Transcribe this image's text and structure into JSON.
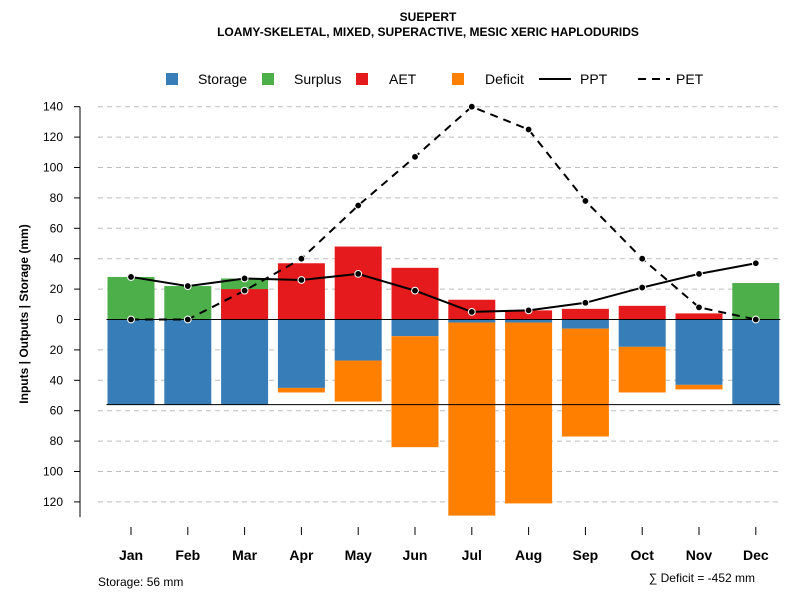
{
  "chart_data": {
    "type": "bar",
    "title": "SUEPERT",
    "subtitle": "LOAMY-SKELETAL, MIXED, SUPERACTIVE, MESIC XERIC HAPLODURIDS",
    "ylabel": "Inputs | Outputs | Storage    (mm)",
    "y_axis_upper": {
      "range": [
        0,
        140
      ],
      "ticks": [
        0,
        20,
        40,
        60,
        80,
        100,
        120,
        140
      ]
    },
    "y_axis_lower": {
      "range": [
        0,
        130
      ],
      "ticks": [
        20,
        40,
        60,
        80,
        100,
        120
      ],
      "direction": "downward"
    },
    "grid": true,
    "legend_position": "top",
    "legend": [
      {
        "key": "storage",
        "label": "Storage",
        "type": "box",
        "color": "#377EB8"
      },
      {
        "key": "surplus",
        "label": "Surplus",
        "type": "box",
        "color": "#4DAF4A"
      },
      {
        "key": "aet",
        "label": "AET",
        "type": "box",
        "color": "#E41A1C"
      },
      {
        "key": "deficit",
        "label": "Deficit",
        "type": "box",
        "color": "#FF7F00"
      },
      {
        "key": "ppt",
        "label": "PPT",
        "type": "solid-line",
        "color": "#000000"
      },
      {
        "key": "pet",
        "label": "PET",
        "type": "dashed-line",
        "color": "#000000"
      }
    ],
    "categories": [
      "Jan",
      "Feb",
      "Mar",
      "Apr",
      "May",
      "Jun",
      "Jul",
      "Aug",
      "Sep",
      "Oct",
      "Nov",
      "Dec"
    ],
    "series": [
      {
        "name": "Surplus",
        "key": "surplus",
        "color": "#4DAF4A",
        "values": [
          28,
          22,
          27,
          0,
          0,
          0,
          0,
          0,
          0,
          0,
          0,
          24
        ]
      },
      {
        "name": "AET",
        "key": "aet",
        "color": "#E41A1C",
        "values": [
          0,
          0,
          20,
          37,
          48,
          34,
          13,
          6,
          7,
          9,
          4,
          0
        ]
      },
      {
        "name": "Storage",
        "key": "storage",
        "color": "#377EB8",
        "values": [
          56,
          56,
          56,
          45,
          27,
          11,
          2,
          2,
          6,
          18,
          43,
          56
        ]
      },
      {
        "name": "Deficit",
        "key": "deficit",
        "color": "#FF7F00",
        "values": [
          0,
          0,
          0,
          3,
          27,
          73,
          127,
          119,
          71,
          30,
          3,
          0
        ]
      },
      {
        "name": "PPT",
        "key": "ppt",
        "color": "#000000",
        "values": [
          28,
          22,
          27,
          26,
          30,
          19,
          5,
          6,
          11,
          21,
          30,
          37
        ]
      },
      {
        "name": "PET",
        "key": "pet",
        "color": "#000000",
        "values": [
          0,
          0,
          19,
          40,
          75,
          107,
          140,
          125,
          78,
          40,
          8,
          0
        ]
      }
    ],
    "storage_capacity_line": 56,
    "footer_left": "Storage: 56 mm",
    "footer_right": "∑ Deficit = -452 mm"
  }
}
